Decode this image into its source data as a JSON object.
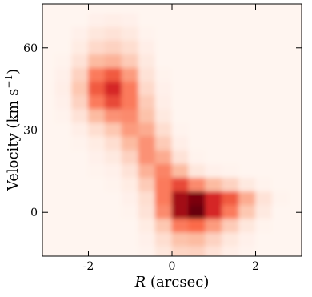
{
  "chart_data": {
    "type": "heatmap",
    "xlabel": [
      "R",
      " (arcsec)"
    ],
    "ylabel": [
      "Velocity (km s",
      "−1",
      ")"
    ],
    "x": [
      -3.0,
      -2.6,
      -2.2,
      -1.8,
      -1.4,
      -1.0,
      -0.6,
      -0.2,
      0.2,
      0.6,
      1.0,
      1.4,
      1.8,
      2.2,
      2.6,
      3.0
    ],
    "y": [
      75,
      70,
      65,
      60,
      55,
      50,
      45,
      40,
      35,
      30,
      25,
      20,
      15,
      10,
      5,
      0,
      -5,
      -10,
      -15
    ],
    "z": [
      [
        0,
        0,
        0,
        0,
        0,
        0,
        0,
        0,
        0,
        0,
        0,
        0,
        0,
        0,
        0,
        0
      ],
      [
        0,
        0,
        0,
        2,
        3,
        2,
        0,
        0,
        0,
        0,
        0,
        0,
        0,
        0,
        0,
        0
      ],
      [
        0,
        0,
        2,
        6,
        8,
        5,
        1,
        0,
        0,
        0,
        0,
        0,
        0,
        0,
        0,
        0
      ],
      [
        0,
        0,
        4,
        12,
        15,
        10,
        3,
        0,
        0,
        0,
        0,
        0,
        0,
        0,
        0,
        0
      ],
      [
        0,
        1,
        8,
        25,
        28,
        18,
        5,
        0,
        0,
        0,
        0,
        0,
        0,
        0,
        0,
        0
      ],
      [
        0,
        2,
        15,
        45,
        55,
        35,
        8,
        1,
        0,
        0,
        0,
        0,
        0,
        0,
        0,
        0
      ],
      [
        0,
        3,
        20,
        55,
        70,
        45,
        12,
        2,
        0,
        0,
        0,
        0,
        0,
        0,
        0,
        0
      ],
      [
        0,
        2,
        15,
        45,
        60,
        45,
        18,
        3,
        0,
        0,
        0,
        0,
        0,
        0,
        0,
        0
      ],
      [
        0,
        1,
        8,
        25,
        38,
        40,
        22,
        5,
        0,
        0,
        0,
        0,
        0,
        0,
        0,
        0
      ],
      [
        0,
        0,
        3,
        10,
        20,
        35,
        30,
        10,
        1,
        0,
        0,
        0,
        0,
        0,
        0,
        0
      ],
      [
        0,
        0,
        1,
        4,
        10,
        25,
        38,
        18,
        3,
        0,
        0,
        0,
        0,
        0,
        0,
        0
      ],
      [
        0,
        0,
        0,
        2,
        5,
        15,
        38,
        30,
        8,
        1,
        0,
        0,
        0,
        0,
        0,
        0
      ],
      [
        0,
        0,
        0,
        1,
        2,
        8,
        28,
        42,
        25,
        6,
        2,
        1,
        0,
        0,
        0,
        0
      ],
      [
        0,
        0,
        0,
        0,
        1,
        4,
        18,
        45,
        60,
        40,
        25,
        15,
        5,
        1,
        0,
        0
      ],
      [
        0,
        0,
        0,
        0,
        0,
        2,
        10,
        45,
        85,
        95,
        70,
        55,
        30,
        8,
        1,
        0
      ],
      [
        0,
        0,
        0,
        0,
        0,
        1,
        8,
        40,
        85,
        100,
        70,
        45,
        20,
        5,
        0,
        0
      ],
      [
        0,
        0,
        0,
        0,
        0,
        0,
        4,
        20,
        45,
        50,
        35,
        18,
        6,
        1,
        0,
        0
      ],
      [
        0,
        0,
        0,
        0,
        0,
        0,
        2,
        10,
        22,
        25,
        15,
        6,
        2,
        0,
        0,
        0
      ],
      [
        0,
        0,
        0,
        0,
        0,
        0,
        1,
        6,
        14,
        15,
        8,
        3,
        1,
        0,
        0,
        0
      ]
    ],
    "colormap": [
      "#fff5f0",
      "#fcbba1",
      "#fb6a4a",
      "#cb181d",
      "#67000d"
    ],
    "xlim": [
      -3.1,
      3.1
    ],
    "ylim": [
      -16,
      76
    ],
    "xticks": [
      -2,
      0,
      2
    ],
    "yticks": [
      0,
      30,
      60
    ]
  }
}
